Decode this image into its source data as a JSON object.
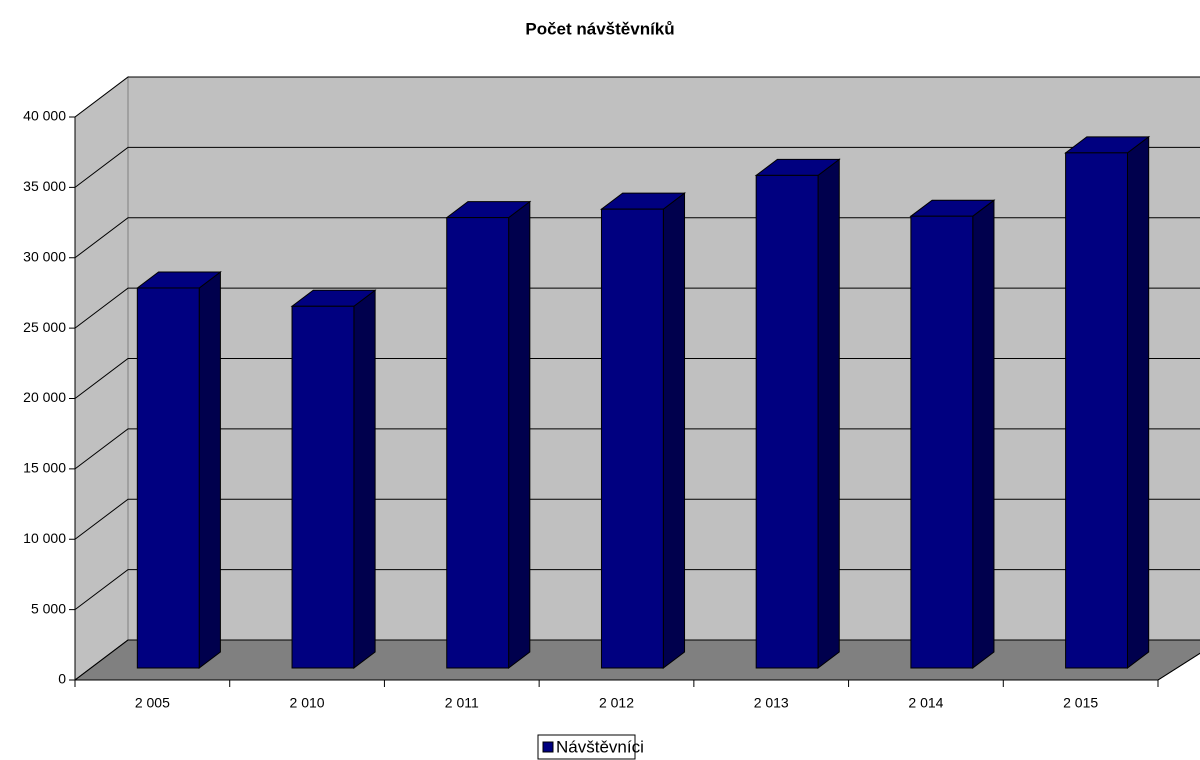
{
  "chart_data": {
    "type": "bar3d",
    "title": "Počet návštěvníků",
    "categories": [
      "2 005",
      "2 010",
      "2 011",
      "2 012",
      "2 013",
      "2 014",
      "2 015"
    ],
    "series": [
      {
        "name": "Návštěvníci",
        "color": "#000080",
        "values": [
          27000,
          25700,
          32000,
          32600,
          35000,
          32100,
          36600
        ]
      }
    ],
    "ylim": [
      0,
      40000
    ],
    "yticks": [
      0,
      {
        "value": 5000,
        "label": "5 000"
      },
      {
        "value": 10000,
        "label": "10 000"
      },
      {
        "value": 15000,
        "label": "15 000"
      },
      {
        "value": 20000,
        "label": "20 000"
      },
      {
        "value": 25000,
        "label": "25 000"
      },
      {
        "value": 30000,
        "label": "30 000"
      },
      {
        "value": 35000,
        "label": "35 000"
      },
      {
        "value": 40000,
        "label": "40 000"
      }
    ],
    "grid": true,
    "legend": "bottom"
  }
}
